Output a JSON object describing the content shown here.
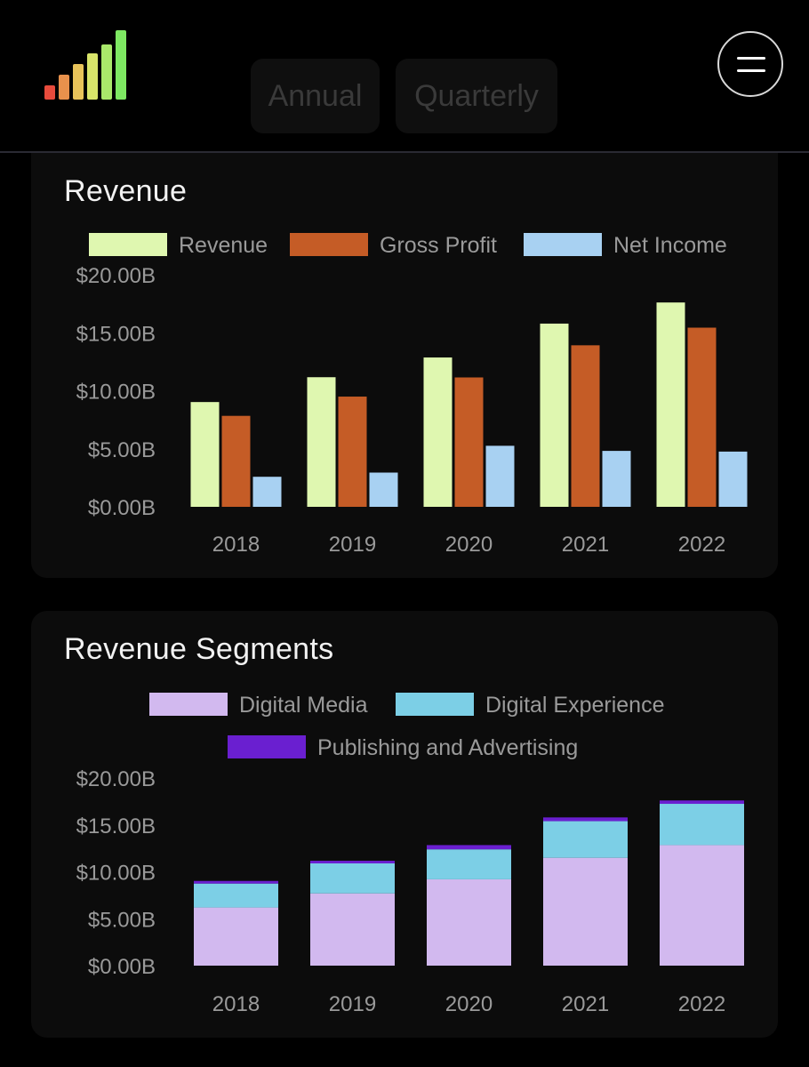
{
  "header": {
    "tabs": [
      {
        "label": "Annual"
      },
      {
        "label": "Quarterly"
      }
    ]
  },
  "colors": {
    "revenue": "#dff7b0",
    "gross_profit": "#c55c26",
    "net_income": "#a8d1f2",
    "digital_media": "#d2b9ef",
    "digital_experience": "#7ccfe6",
    "publishing_advertising": "#6a1fd0",
    "logo_bars": [
      "#e84b3c",
      "#e8914c",
      "#e8c35a",
      "#d9e56a",
      "#a9e86a",
      "#7ee862"
    ]
  },
  "icons": {
    "logo": "signal-bars-logo-icon",
    "menu": "hamburger-menu-icon"
  },
  "chart_data": [
    {
      "type": "bar",
      "title": "Revenue",
      "categories": [
        "2018",
        "2019",
        "2020",
        "2021",
        "2022"
      ],
      "series": [
        {
          "name": "Revenue",
          "values": [
            9.03,
            11.17,
            12.87,
            15.79,
            17.61
          ]
        },
        {
          "name": "Gross Profit",
          "values": [
            7.84,
            9.5,
            11.15,
            13.92,
            15.44
          ]
        },
        {
          "name": "Net Income",
          "values": [
            2.59,
            2.95,
            5.26,
            4.82,
            4.76
          ]
        }
      ],
      "ylim": [
        0,
        20
      ],
      "yticks": [
        "$0.00B",
        "$5.00B",
        "$10.00B",
        "$15.00B",
        "$20.00B"
      ],
      "legend": "top"
    },
    {
      "type": "bar",
      "stacked": true,
      "title": "Revenue Segments",
      "categories": [
        "2018",
        "2019",
        "2020",
        "2021",
        "2022"
      ],
      "series": [
        {
          "name": "Digital Media",
          "values": [
            6.2,
            7.7,
            9.2,
            11.5,
            12.85
          ]
        },
        {
          "name": "Digital Experience",
          "values": [
            2.55,
            3.2,
            3.2,
            3.9,
            4.4
          ]
        },
        {
          "name": "Publishing and Advertising",
          "values": [
            0.28,
            0.28,
            0.45,
            0.4,
            0.36
          ]
        }
      ],
      "ylim": [
        0,
        20
      ],
      "yticks": [
        "$0.00B",
        "$5.00B",
        "$10.00B",
        "$15.00B",
        "$20.00B"
      ],
      "legend": "top"
    }
  ]
}
